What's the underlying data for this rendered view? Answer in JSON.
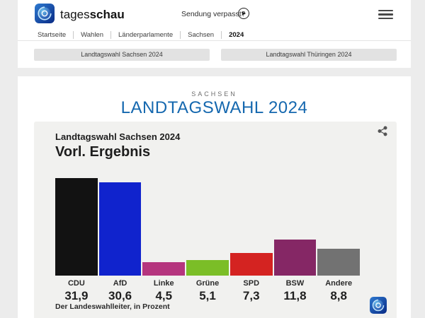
{
  "page": {
    "background": "#ececec",
    "content_background": "#ffffff"
  },
  "header": {
    "brand_regular": "tages",
    "brand_bold": "schau",
    "sendung_verpasst_label": "Sendung verpasst?",
    "nav_items": [
      "Startseite",
      "Wahlen",
      "Länderparlamente",
      "Sachsen",
      "2024"
    ],
    "active_nav": "2024"
  },
  "quick_links": {
    "sachsen_label": "Landtagswahl Sachsen 2024",
    "thueringen_label": "Landtagswahl Thüringen 2024"
  },
  "main": {
    "kicker": "SACHSEN",
    "title": "LANDTAGSWAHL 2024",
    "title_color": "#1568af"
  },
  "icons": {
    "play": "▶",
    "menu": "hamburger three lines",
    "share": "share network glyph",
    "logo": "tagesschau globe app tile"
  },
  "chart_data": {
    "type": "bar",
    "title": "Landtagswahl Sachsen 2024",
    "subtitle": "Vorl. Ergebnis",
    "source": "Der Landeswahlleiter, in Prozent",
    "unit": "percent",
    "categories": [
      "CDU",
      "AfD",
      "Linke",
      "Grüne",
      "SPD",
      "BSW",
      "Andere"
    ],
    "values": [
      31.9,
      30.6,
      4.5,
      5.1,
      7.3,
      11.8,
      8.8
    ],
    "value_labels": [
      "31,9",
      "30,6",
      "4,5",
      "5,1",
      "7,3",
      "11,8",
      "8,8"
    ],
    "colors": [
      "#121212",
      "#1023cd",
      "#b5357e",
      "#7bbe27",
      "#d42321",
      "#852765",
      "#727272"
    ],
    "ylim": [
      0,
      32
    ],
    "grid": false,
    "legend": "none",
    "value_labels_position": "below-bars"
  }
}
